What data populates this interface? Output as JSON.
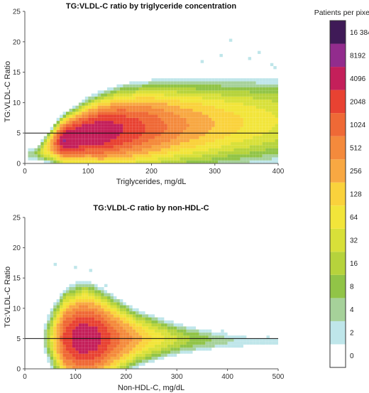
{
  "chart_data": [
    {
      "type": "heatmap",
      "title": "TG:VLDL-C ratio by triglyceride concentration",
      "xlabel": "Triglycerides, mg/dL",
      "ylabel": "TG:VLDL-C Ratio",
      "xlim": [
        0,
        400
      ],
      "ylim": [
        0,
        25
      ],
      "xticks": [
        0,
        100,
        200,
        300,
        400
      ],
      "yticks": [
        0,
        5,
        10,
        15,
        20,
        25
      ],
      "reference_line_y": 5,
      "x_bin_width": 5,
      "y_bin_height": 0.5,
      "density_model": {
        "mean_ratio": [
          [
            20,
            1.6
          ],
          [
            50,
            3.4
          ],
          [
            100,
            4.8
          ],
          [
            150,
            5.5
          ],
          [
            200,
            6.0
          ],
          [
            300,
            6.5
          ],
          [
            400,
            7.0
          ]
        ],
        "ratio_sd": [
          [
            20,
            0.6
          ],
          [
            50,
            1.0
          ],
          [
            100,
            1.5
          ],
          [
            150,
            1.9
          ],
          [
            200,
            2.1
          ],
          [
            300,
            2.4
          ],
          [
            400,
            2.6
          ]
        ],
        "peak_log2_count": [
          [
            15,
            2.5
          ],
          [
            60,
            13.0
          ],
          [
            120,
            13.0
          ],
          [
            175,
            11.5
          ],
          [
            250,
            9.2
          ],
          [
            320,
            7.5
          ],
          [
            400,
            6.0
          ]
        ]
      },
      "outlier_bins": [
        [
          325,
          20.25
        ],
        [
          310,
          17.75
        ],
        [
          370,
          18.25
        ],
        [
          355,
          17.25
        ],
        [
          390,
          16.25
        ],
        [
          395,
          15.75
        ],
        [
          280,
          16.75
        ]
      ]
    },
    {
      "type": "heatmap",
      "title": "TG:VLDL-C ratio by non-HDL-C",
      "xlabel": "Non-HDL-C, mg/dL",
      "ylabel": "TG:VLDL-C Ratio",
      "xlim": [
        0,
        500
      ],
      "ylim": [
        0,
        25
      ],
      "xticks": [
        0,
        100,
        200,
        300,
        400,
        500
      ],
      "yticks": [
        0,
        5,
        10,
        15,
        20,
        25
      ],
      "reference_line_y": 5,
      "x_bin_width": 6.25,
      "y_bin_height": 0.5,
      "density_model": {
        "mean_ratio": [
          [
            40,
            5.0
          ],
          [
            100,
            5.0
          ],
          [
            150,
            5.0
          ],
          [
            250,
            5.0
          ],
          [
            350,
            4.8
          ],
          [
            450,
            4.5
          ],
          [
            500,
            4.5
          ]
        ],
        "ratio_sd": [
          [
            40,
            1.6
          ],
          [
            80,
            2.2
          ],
          [
            120,
            2.4
          ],
          [
            160,
            2.1
          ],
          [
            220,
            1.5
          ],
          [
            300,
            1.1
          ],
          [
            400,
            0.8
          ],
          [
            500,
            0.7
          ]
        ],
        "peak_log2_count": [
          [
            38,
            2.0
          ],
          [
            60,
            8.0
          ],
          [
            80,
            11.5
          ],
          [
            110,
            12.8
          ],
          [
            140,
            12.5
          ],
          [
            180,
            10.5
          ],
          [
            250,
            7.0
          ],
          [
            320,
            4.2
          ],
          [
            400,
            2.2
          ],
          [
            470,
            1.0
          ]
        ]
      },
      "outlier_bins": [
        [
          60,
          17.25
        ],
        [
          100,
          16.75
        ],
        [
          130,
          16.25
        ],
        [
          160,
          13.75
        ],
        [
          390,
          6.25
        ],
        [
          430,
          5.25
        ],
        [
          470,
          4.25
        ],
        [
          480,
          5.25
        ]
      ]
    }
  ],
  "legend": {
    "title": "Patients per pixel",
    "entries": [
      "0",
      "2",
      "4",
      "8",
      "16",
      "32",
      "64",
      "128",
      "256",
      "512",
      "1024",
      "2048",
      "4096",
      "8192",
      "16 384"
    ],
    "colors": [
      "#ffffff",
      "#bfe6ea",
      "#a6d19a",
      "#91c447",
      "#b6d33c",
      "#d8e039",
      "#f2e53a",
      "#fad23c",
      "#f8a842",
      "#f48a3c",
      "#ef6936",
      "#e84232",
      "#c41f5a",
      "#922c8d",
      "#3f1a57"
    ]
  }
}
